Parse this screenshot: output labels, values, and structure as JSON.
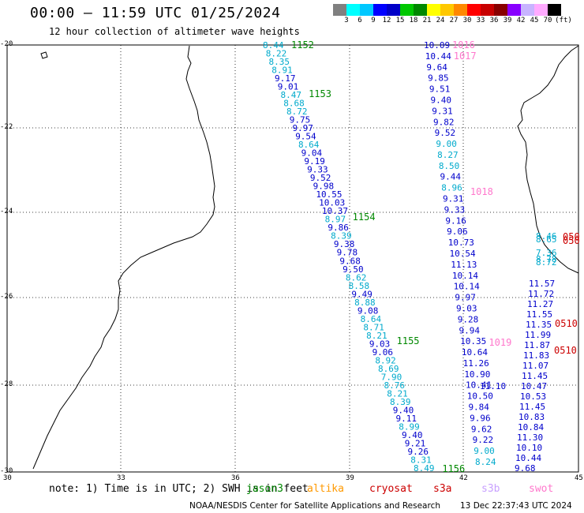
{
  "title": "00:00 – 11:59 UTC 01/25/2024",
  "subtitle": "12 hour collection of altimeter wave heights",
  "scale": {
    "colors": [
      "#808080",
      "#00ffff",
      "#00c8ff",
      "#0000ff",
      "#0000c8",
      "#00c800",
      "#008800",
      "#ffff00",
      "#ffc800",
      "#ff8800",
      "#ff0000",
      "#c80000",
      "#880000",
      "#8800ff",
      "#c8b4ff",
      "#ffaaff",
      "#000000"
    ],
    "ticks": [
      "3",
      "6",
      "9",
      "12",
      "15",
      "18",
      "21",
      "24",
      "27",
      "30",
      "33",
      "36",
      "39",
      "42",
      "45",
      "70"
    ],
    "unit": "(ft)"
  },
  "axes": {
    "lat_labels": [
      "-20",
      "-22",
      "-24",
      "-26",
      "-28",
      "-30"
    ],
    "lon_labels": [
      "30",
      "33",
      "36",
      "39",
      "42",
      "45"
    ]
  },
  "colors": {
    "cyan": "#00aacc",
    "blue": "#0000cc",
    "green": "#008800",
    "pink": "#ff77cc",
    "red": "#cc0000",
    "orange": "#ff9900",
    "violet": "#c8a0ff"
  },
  "tracks": {
    "track1": [
      [
        "8.44",
        "c"
      ],
      [
        "8.22",
        "c"
      ],
      [
        "8.35",
        "c"
      ],
      [
        "8.91",
        "c"
      ],
      [
        "9.17",
        "b"
      ],
      [
        "9.01",
        "b"
      ],
      [
        "8.47",
        "c"
      ],
      [
        "8.68",
        "c"
      ],
      [
        "8.72",
        "c"
      ],
      [
        "9.75",
        "b"
      ],
      [
        "9.97",
        "b"
      ],
      [
        "9.54",
        "b"
      ],
      [
        "8.64",
        "c"
      ],
      [
        "9.04",
        "b"
      ],
      [
        "9.19",
        "b"
      ],
      [
        "9.33",
        "b"
      ],
      [
        "9.52",
        "b"
      ],
      [
        "9.98",
        "b"
      ],
      [
        "10.55",
        "b"
      ],
      [
        "10.03",
        "b"
      ],
      [
        "10.37",
        "b"
      ],
      [
        "8.97",
        "c"
      ],
      [
        "9.86",
        "b"
      ],
      [
        "8.39",
        "c"
      ],
      [
        "9.38",
        "b"
      ],
      [
        "9.78",
        "b"
      ],
      [
        "9.68",
        "b"
      ],
      [
        "9.50",
        "b"
      ],
      [
        "8.62",
        "c"
      ],
      [
        "8.58",
        "c"
      ],
      [
        "9.49",
        "b"
      ],
      [
        "8.88",
        "c"
      ],
      [
        "9.08",
        "b"
      ],
      [
        "8.64",
        "c"
      ],
      [
        "8.71",
        "c"
      ],
      [
        "8.21",
        "c"
      ],
      [
        "9.03",
        "b"
      ],
      [
        "9.06",
        "b"
      ],
      [
        "8.92",
        "c"
      ],
      [
        "8.69",
        "c"
      ],
      [
        "7.90",
        "c"
      ],
      [
        "8.76",
        "c"
      ],
      [
        "8.21",
        "c"
      ],
      [
        "8.39",
        "c"
      ],
      [
        "9.40",
        "b"
      ],
      [
        "9.11",
        "b"
      ],
      [
        "8.99",
        "c"
      ],
      [
        "9.40",
        "b"
      ],
      [
        "9.21",
        "b"
      ],
      [
        "9.26",
        "b"
      ],
      [
        "8.31",
        "c"
      ],
      [
        "8.49",
        "c"
      ]
    ],
    "track1_times": [
      "1152",
      "1153",
      "1154",
      "1155",
      "1156"
    ],
    "track2": [
      [
        "10.09",
        "b"
      ],
      [
        "10.44",
        "b"
      ],
      [
        "9.64",
        "b"
      ],
      [
        "9.85",
        "b"
      ],
      [
        "9.51",
        "b"
      ],
      [
        "9.40",
        "b"
      ],
      [
        "9.31",
        "b"
      ],
      [
        "9.82",
        "b"
      ],
      [
        "9.52",
        "b"
      ],
      [
        "9.00",
        "c"
      ],
      [
        "8.27",
        "c"
      ],
      [
        "8.50",
        "c"
      ],
      [
        "9.44",
        "b"
      ],
      [
        "8.96",
        "c"
      ],
      [
        "9.31",
        "b"
      ],
      [
        "9.33",
        "b"
      ],
      [
        "9.16",
        "b"
      ],
      [
        "9.06",
        "b"
      ],
      [
        "10.73",
        "b"
      ],
      [
        "10.54",
        "b"
      ],
      [
        "11.13",
        "b"
      ],
      [
        "10.14",
        "b"
      ],
      [
        "10.14",
        "b"
      ],
      [
        "9.97",
        "b"
      ],
      [
        "9.03",
        "b"
      ],
      [
        "9.28",
        "b"
      ],
      [
        "9.94",
        "b"
      ],
      [
        "10.35",
        "b"
      ],
      [
        "10.64",
        "b"
      ],
      [
        "11.26",
        "b"
      ],
      [
        "10.90",
        "b"
      ],
      [
        "10.41",
        "b"
      ],
      [
        "10.50",
        "b"
      ],
      [
        "9.84",
        "b"
      ],
      [
        "9.96",
        "b"
      ],
      [
        "9.62",
        "b"
      ],
      [
        "9.22",
        "b"
      ],
      [
        "9.00",
        "c"
      ],
      [
        "8.24",
        "c"
      ]
    ],
    "track2_times": [
      "1016",
      "1017",
      "1018",
      "1019"
    ],
    "track3": [
      [
        "11.57",
        "b"
      ],
      [
        "11.72",
        "b"
      ],
      [
        "11.27",
        "b"
      ],
      [
        "11.55",
        "b"
      ],
      [
        "11.35",
        "b"
      ],
      [
        "11.99",
        "b"
      ],
      [
        "11.87",
        "b"
      ],
      [
        "11.83",
        "b"
      ],
      [
        "11.07",
        "b"
      ],
      [
        "11.45",
        "b"
      ],
      [
        "10.47",
        "b"
      ],
      [
        "10.53",
        "b"
      ],
      [
        "11.45",
        "b"
      ],
      [
        "10.83",
        "b"
      ],
      [
        "10.84",
        "b"
      ],
      [
        "11.30",
        "b"
      ],
      [
        "10.10",
        "b"
      ],
      [
        "10.44",
        "b"
      ],
      [
        "9.68",
        "b"
      ]
    ],
    "track3_extra": [
      "11.10"
    ],
    "coastal": [
      "8.46",
      "8.65",
      "7.36",
      "8.78",
      "8.72"
    ],
    "red_times": [
      "050",
      "050",
      "0510",
      "0510"
    ]
  },
  "footer": {
    "note": "note: 1) Time is in UTC; 2) SWH is in feet",
    "legend": [
      "jason3",
      "altika",
      "cryosat",
      "s3a",
      "s3b",
      "swot"
    ],
    "credit": "NOAA/NESDIS Center for Satellite Applications and Research",
    "timestamp": "13 Dec 22:37:43 UTC 2024"
  }
}
